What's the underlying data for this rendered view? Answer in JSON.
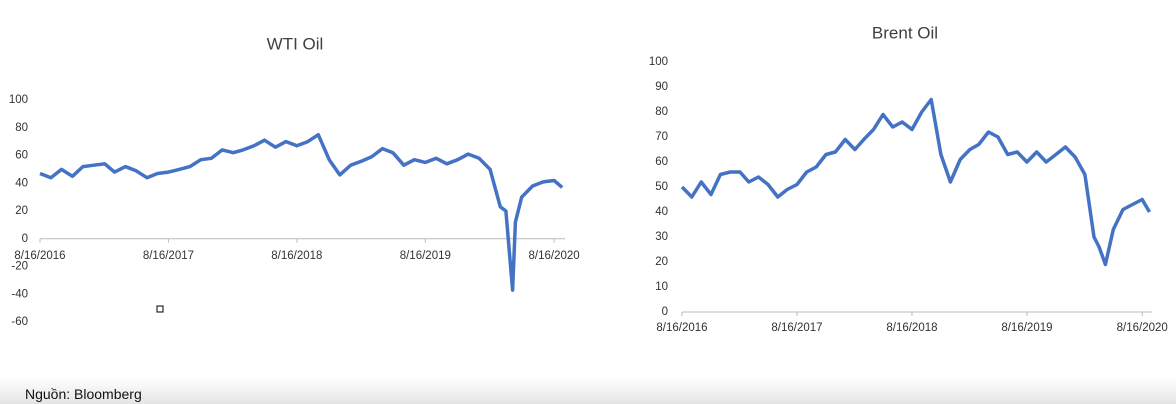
{
  "chart_data": [
    {
      "type": "line",
      "title": "WTI Oil",
      "x": [
        "8/16/2016",
        "9/16/2016",
        "10/16/2016",
        "11/16/2016",
        "12/16/2016",
        "1/16/2017",
        "2/16/2017",
        "3/16/2017",
        "4/16/2017",
        "5/16/2017",
        "6/16/2017",
        "7/16/2017",
        "8/16/2017",
        "9/16/2017",
        "10/16/2017",
        "11/16/2017",
        "12/16/2017",
        "1/16/2018",
        "2/16/2018",
        "3/16/2018",
        "4/16/2018",
        "5/16/2018",
        "6/16/2018",
        "7/16/2018",
        "8/16/2018",
        "9/16/2018",
        "10/16/2018",
        "11/16/2018",
        "12/16/2018",
        "1/16/2019",
        "2/16/2019",
        "3/16/2019",
        "4/16/2019",
        "5/16/2019",
        "6/16/2019",
        "7/16/2019",
        "8/16/2019",
        "9/16/2019",
        "10/16/2019",
        "11/16/2019",
        "12/16/2019",
        "1/16/2020",
        "2/16/2020",
        "3/16/2020",
        "4/1/2020",
        "4/20/2020",
        "4/28/2020",
        "5/16/2020",
        "6/16/2020",
        "7/16/2020",
        "8/16/2020",
        "9/8/2020"
      ],
      "series": [
        {
          "color": "#4472c4",
          "values": [
            47,
            44,
            50,
            45,
            52,
            53,
            54,
            48,
            52,
            49,
            44,
            47,
            48,
            50,
            52,
            57,
            58,
            64,
            62,
            64,
            67,
            71,
            66,
            70,
            67,
            70,
            75,
            57,
            46,
            53,
            56,
            59,
            65,
            62,
            53,
            57,
            55,
            58,
            54,
            57,
            61,
            58,
            50,
            23,
            20,
            -37,
            12,
            30,
            38,
            41,
            42,
            37
          ]
        }
      ],
      "xlim": [
        "8/16/2016",
        "9/16/2020"
      ],
      "xticks": [
        "8/16/2016",
        "8/16/2017",
        "8/16/2018",
        "8/16/2019",
        "8/16/2020"
      ],
      "ylim": [
        -60,
        100
      ],
      "yticks": [
        -60,
        -40,
        -20,
        0,
        20,
        40,
        60,
        80,
        100
      ],
      "grid": false
    },
    {
      "type": "line",
      "title": "Brent Oil",
      "x": [
        "8/16/2016",
        "9/16/2016",
        "10/16/2016",
        "11/16/2016",
        "12/16/2016",
        "1/16/2017",
        "2/16/2017",
        "3/16/2017",
        "4/16/2017",
        "5/16/2017",
        "6/16/2017",
        "7/16/2017",
        "8/16/2017",
        "9/16/2017",
        "10/16/2017",
        "11/16/2017",
        "12/16/2017",
        "1/16/2018",
        "2/16/2018",
        "3/16/2018",
        "4/16/2018",
        "5/16/2018",
        "6/16/2018",
        "7/16/2018",
        "8/16/2018",
        "9/16/2018",
        "10/16/2018",
        "11/16/2018",
        "12/16/2018",
        "1/16/2019",
        "2/16/2019",
        "3/16/2019",
        "4/16/2019",
        "5/16/2019",
        "6/16/2019",
        "7/16/2019",
        "8/16/2019",
        "9/16/2019",
        "10/16/2019",
        "11/16/2019",
        "12/16/2019",
        "1/16/2020",
        "2/16/2020",
        "3/16/2020",
        "4/1/2020",
        "4/21/2020",
        "5/16/2020",
        "6/16/2020",
        "7/16/2020",
        "8/16/2020",
        "9/8/2020"
      ],
      "series": [
        {
          "color": "#4472c4",
          "values": [
            50,
            46,
            52,
            47,
            55,
            56,
            56,
            52,
            54,
            51,
            46,
            49,
            51,
            56,
            58,
            63,
            64,
            69,
            65,
            69,
            73,
            79,
            74,
            76,
            73,
            80,
            85,
            63,
            52,
            61,
            65,
            67,
            72,
            70,
            63,
            64,
            60,
            64,
            60,
            63,
            66,
            62,
            55,
            30,
            26,
            19,
            33,
            41,
            43,
            45,
            40
          ]
        }
      ],
      "xlim": [
        "8/16/2016",
        "9/16/2020"
      ],
      "xticks": [
        "8/16/2016",
        "8/16/2017",
        "8/16/2018",
        "8/16/2019",
        "8/16/2020"
      ],
      "ylim": [
        0,
        100
      ],
      "yticks": [
        0,
        10,
        20,
        30,
        40,
        50,
        60,
        70,
        80,
        90,
        100
      ],
      "grid": false
    }
  ],
  "source": "Nguồn: Bloomberg"
}
